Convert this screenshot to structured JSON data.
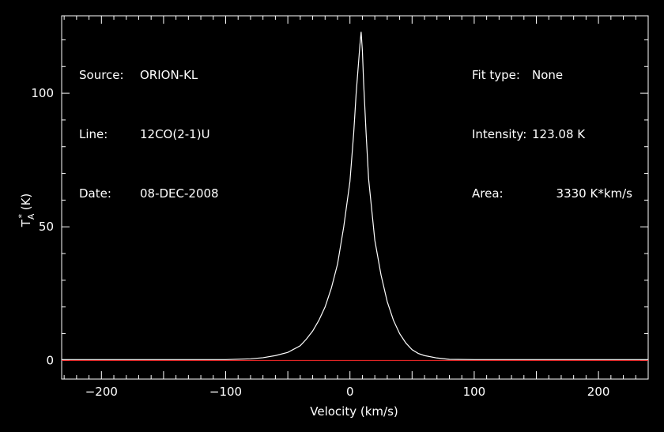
{
  "header": {
    "source_label": "Source:",
    "source_value": "ORION-KL",
    "line_label": "Line:",
    "line_value": "12CO(2-1)U",
    "date_label": "Date:",
    "date_value": "08-DEC-2008",
    "fit_label": "Fit type:",
    "fit_value": "None",
    "intensity_label": "Intensity:",
    "intensity_value": "123.08 K",
    "area_label": "Area:",
    "area_value": "3330 K*km/s"
  },
  "colors": {
    "background": "#000000",
    "axes": "#ffffff",
    "spectrum": "#ffffff",
    "baseline": "#ff2a2a"
  },
  "chart_data": {
    "type": "line",
    "xlabel": "Velocity (km/s)",
    "ylabel": "T_A^* (K)",
    "xlim": [
      -232,
      240
    ],
    "ylim": [
      -7,
      129
    ],
    "xticks": [
      -200,
      -100,
      0,
      100,
      200
    ],
    "yticks": [
      0,
      50,
      100
    ],
    "grid": false,
    "series": [
      {
        "x": [
          -232,
          -150,
          -100,
          -80,
          -70,
          -60,
          -50,
          -40,
          -35,
          -30,
          -25,
          -20,
          -15,
          -10,
          -5,
          0,
          3,
          5,
          7,
          8,
          9,
          10,
          11,
          13,
          15,
          20,
          25,
          30,
          35,
          40,
          45,
          50,
          55,
          60,
          70,
          80,
          100,
          150,
          200,
          240
        ],
        "y": [
          0.3,
          0.3,
          0.3,
          0.6,
          1.0,
          1.8,
          3.0,
          5.5,
          8.0,
          11.0,
          15.0,
          20.0,
          27.0,
          36.0,
          50.0,
          67.0,
          85.0,
          100.0,
          112.0,
          118.0,
          123.0,
          116.0,
          104.0,
          85.0,
          68.0,
          45.0,
          32.0,
          22.0,
          15.0,
          10.0,
          6.5,
          4.0,
          2.6,
          1.8,
          0.9,
          0.4,
          0.3,
          0.3,
          0.3,
          0.3
        ]
      },
      {
        "x": [
          -232,
          240
        ],
        "y": [
          0,
          0
        ]
      }
    ]
  }
}
